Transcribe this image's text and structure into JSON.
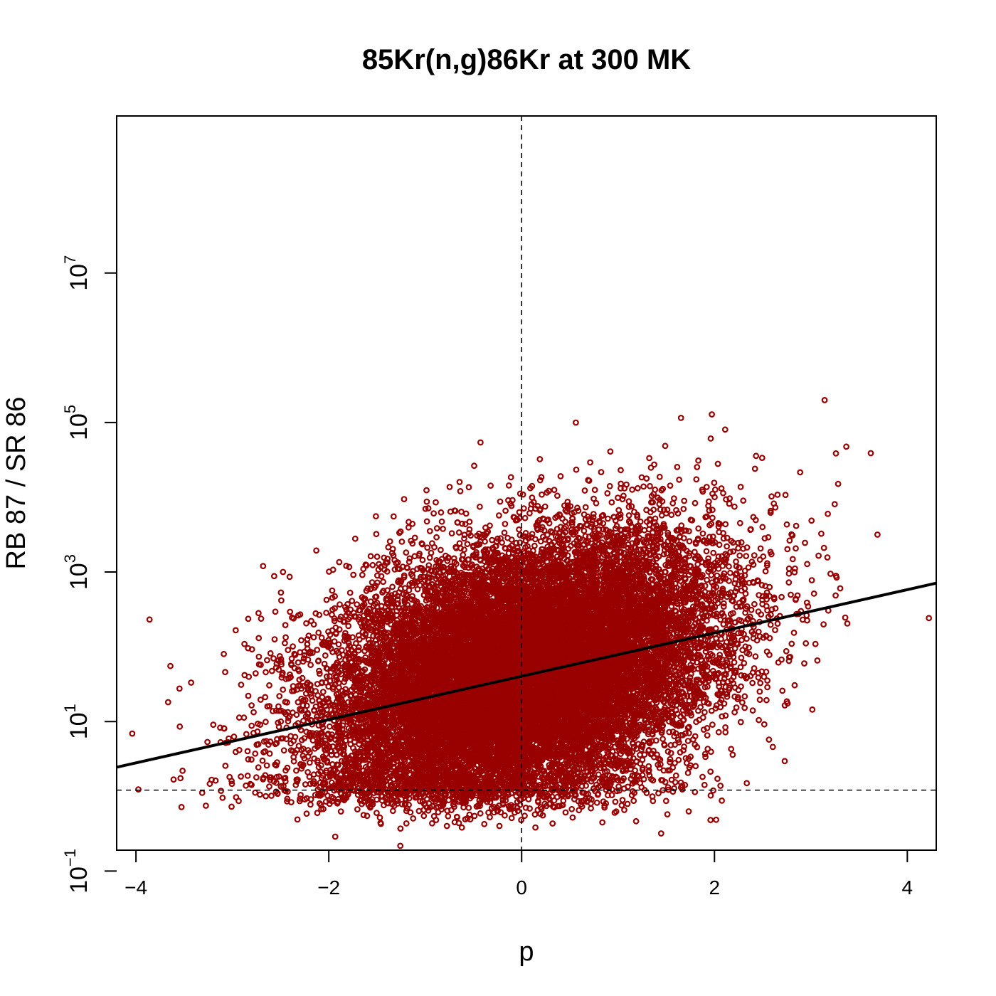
{
  "chart_data": {
    "type": "scatter",
    "title": "85Kr(n,g)86Kr at 300 MK",
    "xlabel": "p",
    "ylabel": "RB 87 / SR 86",
    "xlim": [
      -4.2,
      4.3
    ],
    "ylim_log10": [
      -0.72,
      9.1
    ],
    "y_scale": "log",
    "x_ticks": [
      "−4",
      "−2",
      "0",
      "2",
      "4"
    ],
    "x_tick_values": [
      -4,
      -2,
      0,
      2,
      4
    ],
    "y_ticks": [
      {
        "base": "10",
        "exp": "−1",
        "log10": -1
      },
      {
        "base": "10",
        "exp": "1",
        "log10": 1
      },
      {
        "base": "10",
        "exp": "3",
        "log10": 3
      },
      {
        "base": "10",
        "exp": "5",
        "log10": 5
      },
      {
        "base": "10",
        "exp": "7",
        "log10": 7
      }
    ],
    "point_color": "#990000",
    "approx_point_count": 20000,
    "fit_line": {
      "x": [
        -4.2,
        4.3
      ],
      "y": [
        2.45,
        710
      ]
    },
    "reference_lines": {
      "vertical_x": 0,
      "horizontal_y": 1.21
    },
    "grid": false,
    "legend": "none",
    "point_cloud": {
      "x_mean": 0.0,
      "x_sd": 1.0,
      "log10_y_at_x0": 1.65,
      "log10_y_slope": 0.3,
      "log10_y_sd": 0.85,
      "log10_y_floor": 0.3
    }
  }
}
